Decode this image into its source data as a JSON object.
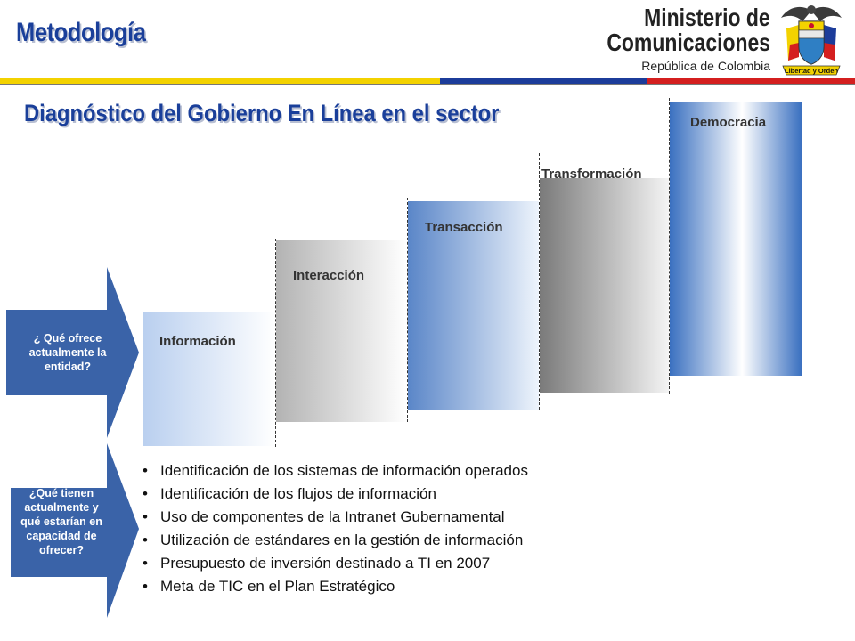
{
  "header": {
    "section_title": "Metodología",
    "ministry_line1": "Ministerio de",
    "ministry_line2": "Comunicaciones",
    "ministry_line3": "República de Colombia",
    "emblem_motto": "Libertad y Orden"
  },
  "band_colors": {
    "yellow": "#f3d200",
    "blue": "#1c3c9a",
    "red": "#d41f1f"
  },
  "diagram": {
    "title": "Diagnóstico del Gobierno En Línea en el sector",
    "steps": [
      {
        "label": "Información",
        "gradient": "light-blue"
      },
      {
        "label": "Interacción",
        "gradient": "light-gray"
      },
      {
        "label": "Transacción",
        "gradient": "blue"
      },
      {
        "label": "Transformación",
        "gradient": "gray"
      },
      {
        "label": "Democracia",
        "gradient": "blue"
      }
    ]
  },
  "arrows": {
    "offer_question": "¿ Qué ofrece actualmente la entidad?",
    "capacity_question": "¿Qué tienen actualmente y qué estarían en capacidad de ofrecer?"
  },
  "bullets": [
    "Identificación de los sistemas de información operados",
    "Identificación de los flujos de información",
    "Uso de componentes de la Intranet Gubernamental",
    "Utilización de estándares en la gestión de información",
    "Presupuesto de inversión destinado a TI en 2007",
    "Meta de TIC en el Plan Estratégico"
  ],
  "colors": {
    "title_blue": "#1a3f9a",
    "arrow_blue": "#3a63a8"
  }
}
